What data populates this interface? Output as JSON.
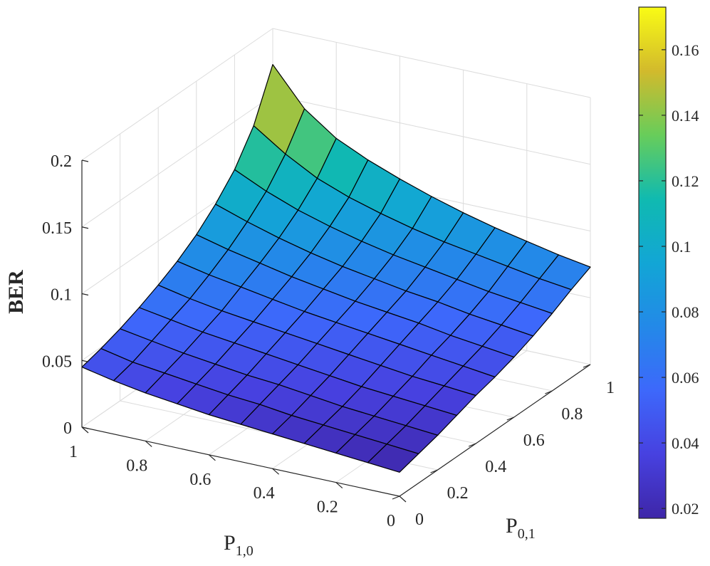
{
  "chart_data": {
    "type": "surface",
    "x_name": "P_{1,0}",
    "y_name": "P_{0,1}",
    "zlabel": "BER",
    "x_range": [
      0,
      1
    ],
    "y_range": [
      0,
      1
    ],
    "zlim": [
      0,
      0.2
    ],
    "x_ticks": [
      "0",
      "0.2",
      "0.4",
      "0.6",
      "0.8",
      "1"
    ],
    "y_ticks": [
      "0",
      "0.2",
      "0.4",
      "0.6",
      "0.8",
      "1"
    ],
    "z_ticks": [
      "0",
      "0.05",
      "0.1",
      "0.15",
      "0.2"
    ],
    "grid": true,
    "colormap": "parula",
    "colorbar": {
      "range": [
        0.017,
        0.173
      ],
      "ticks": [
        "0.02",
        "0.04",
        "0.06",
        "0.08",
        "0.1",
        "0.12",
        "0.14",
        "0.16"
      ]
    },
    "x": [
      0,
      0.1,
      0.2,
      0.3,
      0.4,
      0.5,
      0.6,
      0.7,
      0.8,
      0.9,
      1.0
    ],
    "y": [
      0,
      0.1,
      0.2,
      0.3,
      0.4,
      0.5,
      0.6,
      0.7,
      0.8,
      0.9,
      1.0
    ],
    "z": [
      [
        0.018,
        0.022,
        0.026,
        0.031,
        0.036,
        0.04,
        0.045,
        0.051,
        0.058,
        0.066,
        0.073
      ],
      [
        0.02,
        0.024,
        0.028,
        0.033,
        0.038,
        0.043,
        0.048,
        0.054,
        0.061,
        0.069,
        0.077
      ],
      [
        0.022,
        0.026,
        0.03,
        0.035,
        0.04,
        0.046,
        0.051,
        0.057,
        0.064,
        0.073,
        0.082
      ],
      [
        0.024,
        0.028,
        0.032,
        0.037,
        0.043,
        0.049,
        0.055,
        0.061,
        0.068,
        0.077,
        0.087
      ],
      [
        0.026,
        0.03,
        0.035,
        0.04,
        0.046,
        0.052,
        0.058,
        0.064,
        0.072,
        0.081,
        0.093
      ],
      [
        0.028,
        0.033,
        0.038,
        0.043,
        0.049,
        0.055,
        0.061,
        0.068,
        0.076,
        0.086,
        0.1
      ],
      [
        0.03,
        0.035,
        0.04,
        0.046,
        0.052,
        0.058,
        0.065,
        0.072,
        0.081,
        0.092,
        0.108
      ],
      [
        0.033,
        0.038,
        0.043,
        0.049,
        0.055,
        0.062,
        0.069,
        0.077,
        0.087,
        0.099,
        0.117
      ],
      [
        0.036,
        0.041,
        0.046,
        0.052,
        0.058,
        0.066,
        0.074,
        0.083,
        0.094,
        0.108,
        0.128
      ],
      [
        0.04,
        0.044,
        0.05,
        0.056,
        0.062,
        0.07,
        0.079,
        0.09,
        0.103,
        0.121,
        0.145
      ],
      [
        0.045,
        0.049,
        0.054,
        0.06,
        0.067,
        0.075,
        0.085,
        0.098,
        0.114,
        0.137,
        0.173
      ]
    ]
  }
}
